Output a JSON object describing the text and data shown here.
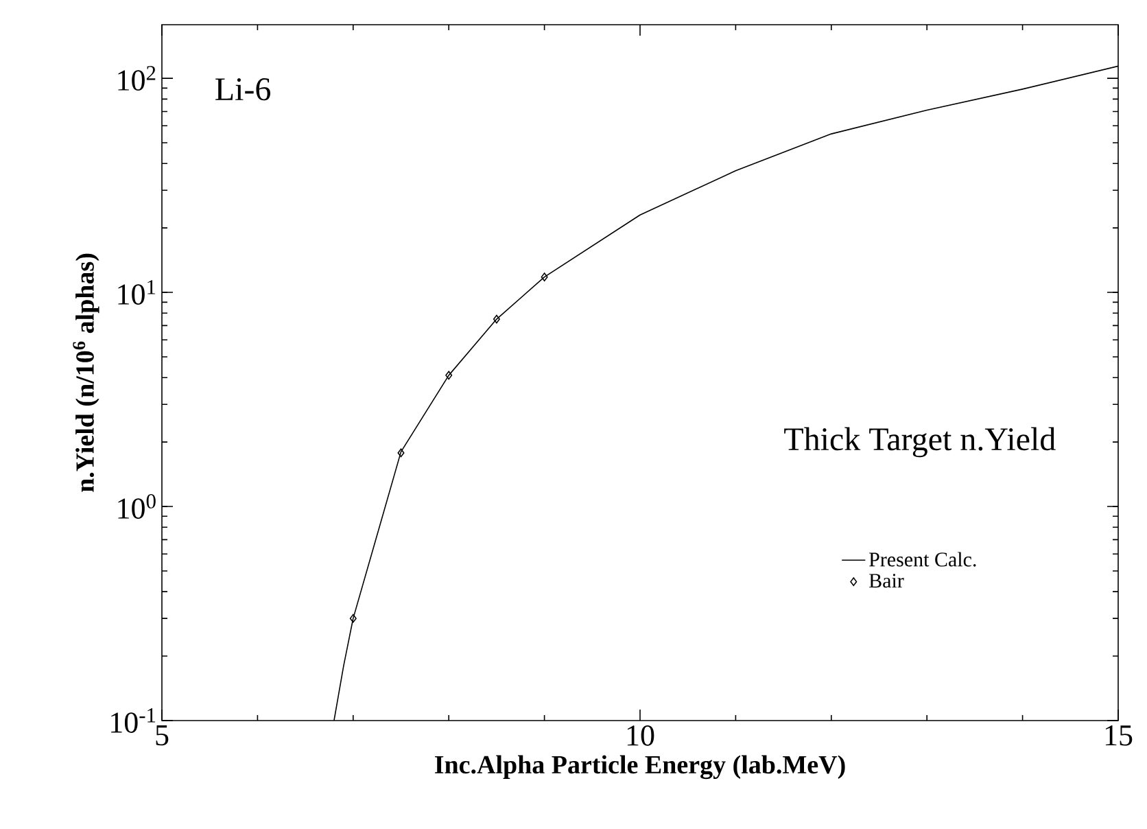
{
  "chart_data": {
    "type": "line",
    "xlabel": "Inc.Alpha Particle Energy (lab.MeV)",
    "ylabel": "n.Yield (n/10$^{6}$ alphas)",
    "annotations": [
      "Li-6",
      "Thick Target n.Yield"
    ],
    "log": "y",
    "xlim": [
      5,
      15
    ],
    "ylim": [
      0.1,
      178
    ],
    "xticks": [
      5,
      10,
      15
    ],
    "yticks": [
      {
        "value": 0.1,
        "label": "10$^{-1}$"
      },
      {
        "value": 1,
        "label": "10$^{0}$"
      },
      {
        "value": 10,
        "label": "10$^{1}$"
      },
      {
        "value": 100,
        "label": "10$^{2}$"
      }
    ],
    "grid": false,
    "legend": "bottom right",
    "series": [
      {
        "name": "Present Calc.",
        "color": "#000000",
        "marker": "none",
        "line_style": "solid",
        "x": [
          6.8,
          6.9,
          7.0,
          7.5,
          8.0,
          8.5,
          9.0,
          10,
          11,
          12,
          13,
          14,
          15
        ],
        "values": [
          0.1,
          0.18,
          0.3,
          1.8,
          4.1,
          7.5,
          11.8,
          23,
          37,
          55,
          71,
          89,
          114
        ]
      },
      {
        "name": "Bair",
        "type": "scatter",
        "color": "#000000",
        "marker": "diamond",
        "x": [
          7.0,
          7.5,
          8.0,
          8.5,
          9.0
        ],
        "values": [
          0.3,
          1.78,
          4.1,
          7.5,
          11.8
        ]
      }
    ]
  }
}
